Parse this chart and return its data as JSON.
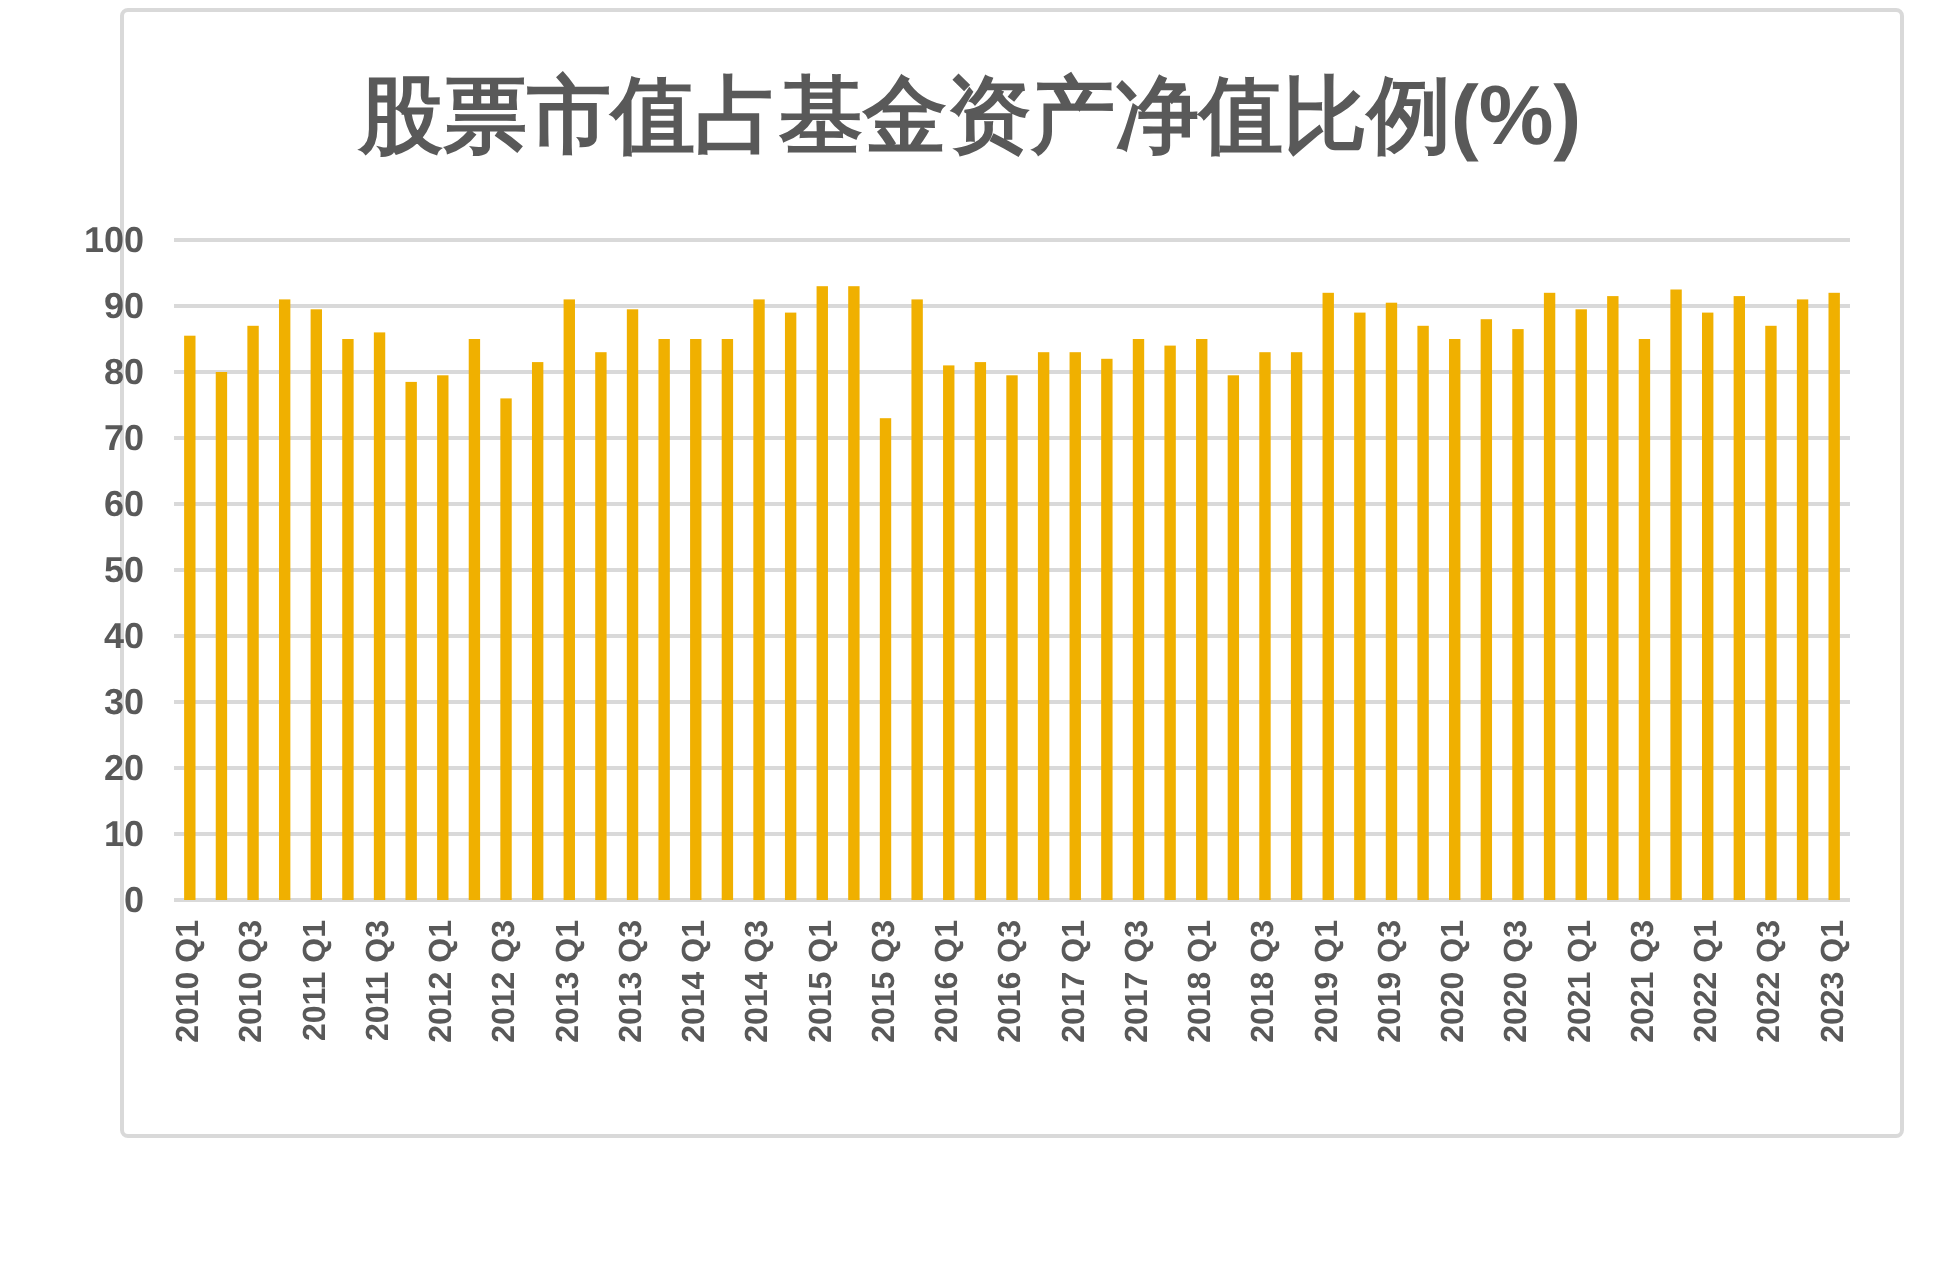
{
  "chart_data": {
    "type": "bar",
    "title": "股票市值占基金资产净值比例(%)",
    "categories": [
      "2010 Q1",
      null,
      "2010 Q3",
      null,
      "2011 Q1",
      null,
      "2011 Q3",
      null,
      "2012 Q1",
      null,
      "2012 Q3",
      null,
      "2013 Q1",
      null,
      "2013 Q3",
      null,
      "2014 Q1",
      null,
      "2014 Q3",
      null,
      "2015 Q1",
      null,
      "2015 Q3",
      null,
      "2016 Q1",
      null,
      "2016 Q3",
      null,
      "2017 Q1",
      null,
      "2017 Q3",
      null,
      "2018 Q1",
      null,
      "2018 Q3",
      null,
      "2019 Q1",
      null,
      "2019 Q3",
      null,
      "2020 Q1",
      null,
      "2020 Q3",
      null,
      "2021 Q1",
      null,
      "2021 Q3",
      null,
      "2022 Q1",
      null,
      "2022 Q3",
      null,
      "2023 Q1"
    ],
    "values": [
      85.5,
      80,
      87,
      91,
      89.5,
      85,
      86,
      78.5,
      79.5,
      85,
      76,
      81.5,
      91,
      83,
      89.5,
      85,
      85,
      85,
      91,
      89,
      93,
      93,
      73,
      91,
      81,
      81.5,
      79.5,
      83,
      83,
      82,
      85,
      84,
      85,
      79.5,
      83,
      83,
      92,
      89,
      90.5,
      87,
      85,
      88,
      86.5,
      92,
      89.5,
      91.5,
      85,
      92.5,
      89,
      91.5,
      87,
      91,
      92
    ],
    "color": "#f0b000",
    "ylim": [
      0,
      100
    ],
    "yticks": [
      0,
      10,
      20,
      30,
      40,
      50,
      60,
      70,
      80,
      90,
      100
    ],
    "grid": "y"
  }
}
